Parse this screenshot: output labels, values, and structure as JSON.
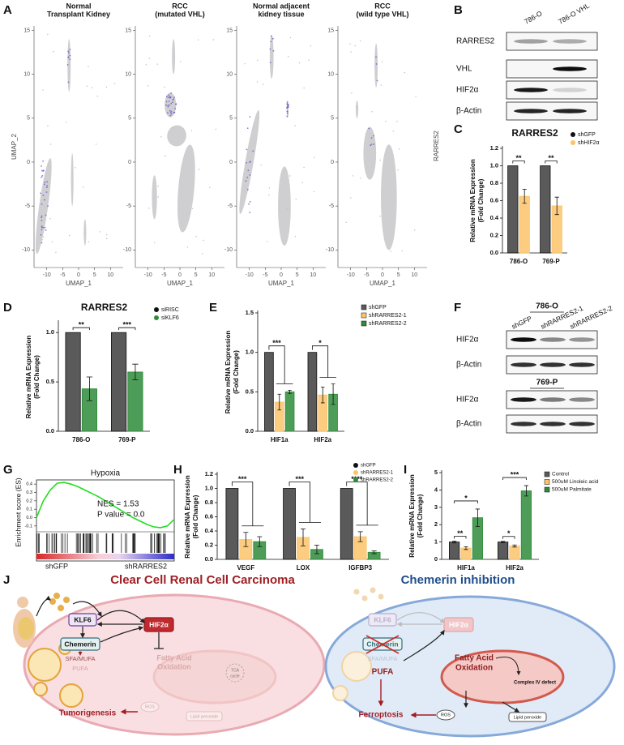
{
  "panel_labels": [
    "A",
    "B",
    "C",
    "D",
    "E",
    "F",
    "G",
    "H",
    "I",
    "J"
  ],
  "chart_data": [
    {
      "type": "umap",
      "title": [
        "Normal",
        "Transplant Kidney"
      ],
      "xlabel": "UMAP_1",
      "ylabel": "UMAP_2",
      "xlim": [
        -14,
        14
      ],
      "ylim": [
        -12,
        15.5
      ],
      "xticks": [
        -10,
        -5,
        0,
        5,
        10
      ],
      "yticks": [
        -10,
        -5,
        0,
        5,
        10,
        15
      ]
    },
    {
      "type": "umap",
      "title": [
        "RCC",
        "(mutated VHL)"
      ],
      "xlabel": "UMAP_1",
      "xlim": [
        -14,
        14
      ],
      "ylim": [
        -12,
        15.5
      ],
      "xticks": [
        -10,
        -5,
        0,
        5,
        10
      ],
      "yticks": [
        -10,
        -5,
        0,
        5,
        10,
        15
      ]
    },
    {
      "type": "umap",
      "title": [
        "Normal adjacent",
        "kidney tissue"
      ],
      "xlabel": "UMAP_1",
      "xlim": [
        -14,
        14
      ],
      "ylim": [
        -12,
        15.5
      ],
      "xticks": [
        -10,
        -5,
        0,
        5,
        10
      ],
      "yticks": [
        -10,
        -5,
        0,
        5,
        10,
        15
      ]
    },
    {
      "type": "umap",
      "title": [
        "RCC",
        "(wild type VHL)"
      ],
      "xlabel": "UMAP_1",
      "side_label": "RARRES2",
      "xlim": [
        -14,
        14
      ],
      "ylim": [
        -12,
        15.5
      ],
      "xticks": [
        -10,
        -5,
        0,
        5,
        10
      ],
      "yticks": [
        -10,
        -5,
        0,
        5,
        10,
        15
      ]
    },
    {
      "type": "bar",
      "title": "RARRES2",
      "categories": [
        "786-O",
        "769-P"
      ],
      "legend_marker": "circle",
      "series": [
        {
          "name": "shGFP",
          "color": "#5a5a5a",
          "values": [
            1,
            1
          ]
        },
        {
          "name": "shHIF2α",
          "color": "#fbc36a",
          "values": [
            0.65,
            0.54
          ],
          "errors": [
            0.08,
            0.1
          ]
        }
      ],
      "ylim": [
        0,
        1.2
      ],
      "yticks": [
        {
          "value": 0,
          "label": "0.0"
        },
        0.2,
        0.4,
        0.6,
        0.8,
        {
          "value": 1,
          "label": "1.0"
        },
        1.2
      ],
      "ylabel": [
        "Relative mRNA Expression",
        "(Fold Change)"
      ],
      "significance": [
        [
          "**"
        ],
        [
          "**"
        ]
      ]
    },
    {
      "type": "bar",
      "title": "RARRES2",
      "categories": [
        "786-O",
        "769-P"
      ],
      "legend_marker": "circle",
      "series": [
        {
          "name": "siRISC",
          "color": "#5a5a5a",
          "values": [
            1,
            1
          ]
        },
        {
          "name": "siKLF6",
          "color": "#2e8b3a",
          "values": [
            0.43,
            0.6
          ],
          "errors": [
            0.12,
            0.08
          ]
        }
      ],
      "ylim": [
        0,
        1.1
      ],
      "yticks": [
        {
          "value": 0,
          "label": "0.0"
        },
        0.5,
        {
          "value": 1,
          "label": "1.0"
        }
      ],
      "ylabel": [
        "Relative mRNA Expression",
        "(Fold Change)"
      ],
      "significance": [
        [
          "**"
        ],
        [
          "***"
        ]
      ]
    },
    {
      "type": "bar",
      "categories": [
        "HIF1a",
        "HIF2a"
      ],
      "legend_marker": "square",
      "series": [
        {
          "name": "shGFP",
          "color": "#5a5a5a",
          "values": [
            1,
            1
          ]
        },
        {
          "name": "shRARRES2-1",
          "color": "#fbc36a",
          "values": [
            0.37,
            0.46
          ],
          "errors": [
            0.1,
            0.1
          ]
        },
        {
          "name": "shRARRES2-2",
          "color": "#2e8b3a",
          "values": [
            0.5,
            0.47
          ],
          "errors": [
            0.02,
            0.13
          ]
        }
      ],
      "ylim": [
        0,
        1.5
      ],
      "yticks": [
        {
          "value": 0,
          "label": "0.0"
        },
        0.5,
        {
          "value": 1,
          "label": "1.0"
        },
        1.5
      ],
      "ylabel": [
        "Relative mRNA Expression",
        "(Fold Change)"
      ],
      "significance": [
        [
          "***"
        ],
        [
          "*"
        ]
      ]
    },
    {
      "type": "line",
      "title": "Hypoxia",
      "ylabel": "Enrichment score (ES)",
      "color": "#22dd22",
      "x": [
        0,
        1,
        2,
        3,
        4,
        5,
        6,
        7,
        8,
        9,
        10,
        11,
        12,
        13,
        14,
        15,
        16,
        17,
        18,
        19,
        20
      ],
      "values": [
        0,
        0.2,
        0.33,
        0.41,
        0.42,
        0.4,
        0.37,
        0.33,
        0.29,
        0.25,
        0.2,
        0.15,
        0.1,
        0.05,
        0,
        -0.04,
        -0.08,
        -0.11,
        -0.12,
        -0.1,
        -0.02
      ],
      "xlim": [
        0,
        20
      ],
      "ylim": [
        -0.15,
        0.45
      ],
      "yticks": [
        0.4,
        0.3,
        0.2,
        0.1,
        {
          "value": 0,
          "label": "0.0"
        },
        -0.1
      ],
      "annotations": [
        "NES = 1.53",
        "P value = 0.0"
      ],
      "left_label": "shGFP",
      "right_label": "shRARRES2"
    },
    {
      "type": "bar",
      "categories": [
        "VEGF",
        "LOX",
        "IGFBP3"
      ],
      "legend_marker": "circle",
      "series": [
        {
          "name": "shGFP",
          "color": "#5a5a5a",
          "values": [
            1,
            1,
            1
          ]
        },
        {
          "name": "shRARRES2-1",
          "color": "#fbc36a",
          "values": [
            0.28,
            0.31,
            0.32
          ],
          "errors": [
            0.1,
            0.12,
            0.07
          ]
        },
        {
          "name": "shRARRES2-2",
          "color": "#2e8b3a",
          "values": [
            0.25,
            0.14,
            0.1
          ],
          "errors": [
            0.07,
            0.06,
            0.02
          ]
        }
      ],
      "ylim": [
        0,
        1.2
      ],
      "yticks": [
        {
          "value": 0,
          "label": "0.0"
        },
        0.2,
        0.4,
        0.6,
        0.8,
        {
          "value": 1,
          "label": "1.0"
        },
        1.2
      ],
      "ylabel": [
        "Relative mRNA Expression",
        "(Fold Change)"
      ],
      "significance": [
        [
          "***"
        ],
        [
          "***"
        ],
        [
          "****"
        ]
      ]
    },
    {
      "type": "bar",
      "categories": [
        "HIF1a",
        "HIF2a"
      ],
      "legend_marker": "square",
      "series": [
        {
          "name": "Control",
          "color": "#5a5a5a",
          "values": [
            1,
            1
          ],
          "errors": [
            0.05,
            0.04
          ]
        },
        {
          "name": "500uM Linoleic acid",
          "color": "#fbc36a",
          "values": [
            0.65,
            0.77
          ],
          "errors": [
            0.08,
            0.06
          ]
        },
        {
          "name": "500uM Palmitate",
          "color": "#2e8b3a",
          "values": [
            2.4,
            3.95
          ],
          "errors": [
            0.5,
            0.3
          ]
        }
      ],
      "ylim": [
        0,
        5
      ],
      "yticks": [
        0,
        1,
        2,
        3,
        4,
        5
      ],
      "ylabel": [
        "Relative mRNA Expression",
        "(Fold Change)"
      ],
      "significance": [
        [
          "**",
          "*"
        ],
        [
          "*",
          "***"
        ]
      ]
    }
  ],
  "blot_b": {
    "lanes": [
      "786-O",
      "786-O VHL"
    ],
    "rows": [
      "RARRES2",
      "VHL",
      "HIF2α",
      "β-Actin"
    ]
  },
  "blot_f": {
    "lanes": [
      "shGFP",
      "shRARRES2-1",
      "shRARRES2-2"
    ],
    "groups": [
      {
        "cell_line": "786-O",
        "rows": [
          "HIF2α",
          "β-Actin"
        ]
      },
      {
        "cell_line": "769-P",
        "rows": [
          "HIF2α",
          "β-Actin"
        ]
      }
    ]
  },
  "diagram": {
    "left": {
      "title": "Clear Cell Renal Cell Carcinoma",
      "klf6": "KLF6",
      "chemerin": "Chemerin",
      "hif2a": "HIF2α",
      "sfa": "SFA/MUFA",
      "pufa": "PUFA",
      "fao": [
        "Fatty Acid",
        "Oxidation"
      ],
      "tca": [
        "TCA",
        "cycle"
      ],
      "outcome": "Tumorigenesis",
      "ros": "ROS",
      "lipid": "Lipid peroxide"
    },
    "right": {
      "title": "Chemerin inhibition",
      "klf6": "KLF6",
      "chemerin": "Chemerin",
      "hif2a": "HIF2α",
      "sfa": "SFA/MUFA",
      "pufa": "PUFA",
      "fao": [
        "Fatty Acid",
        "Oxidation"
      ],
      "complex": "Complex IV defect",
      "outcome": "Ferroptosis",
      "ros": "ROS",
      "lipid": "Lipid peroxide"
    }
  }
}
